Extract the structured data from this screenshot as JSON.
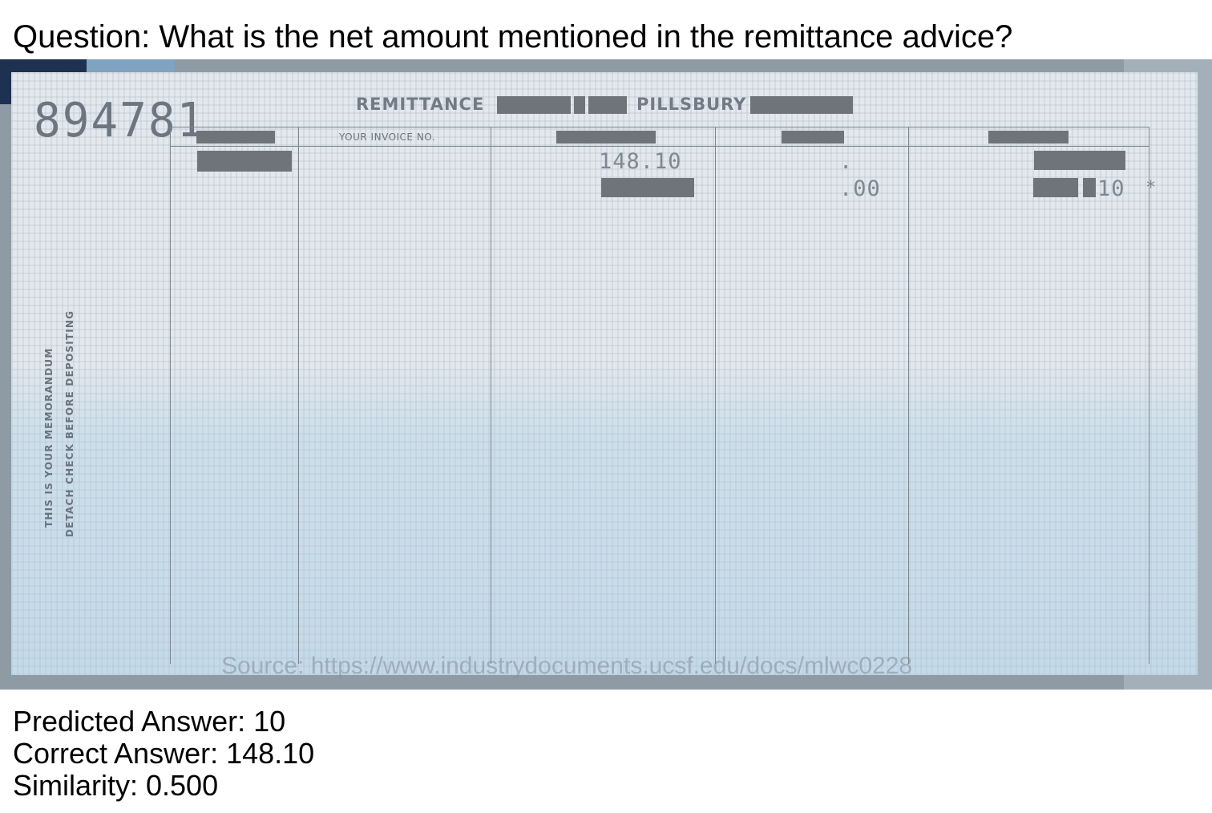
{
  "question": "Question: What is the net amount mentioned in the remittance advice?",
  "document": {
    "check_number": "894781",
    "title_left": "REMITTANCE",
    "title_right": "PILLSBURY",
    "side_line_1": "THIS IS YOUR MEMORANDUM",
    "side_line_2": "DETACH CHECK BEFORE DEPOSITING",
    "column_header_invoice": "YOUR INVOICE NO.",
    "amount_gross": "148.10",
    "amount_discount": ".00",
    "amount_dot": ".",
    "amount_net_partial": "10",
    "asterisk": "*",
    "source": "Source: https://www.industrydocuments.ucsf.edu/docs/mlwc0228"
  },
  "results": {
    "predicted": "Predicted Answer: 10",
    "correct": "Correct Answer: 148.10",
    "similarity": "Similarity: 0.500"
  }
}
